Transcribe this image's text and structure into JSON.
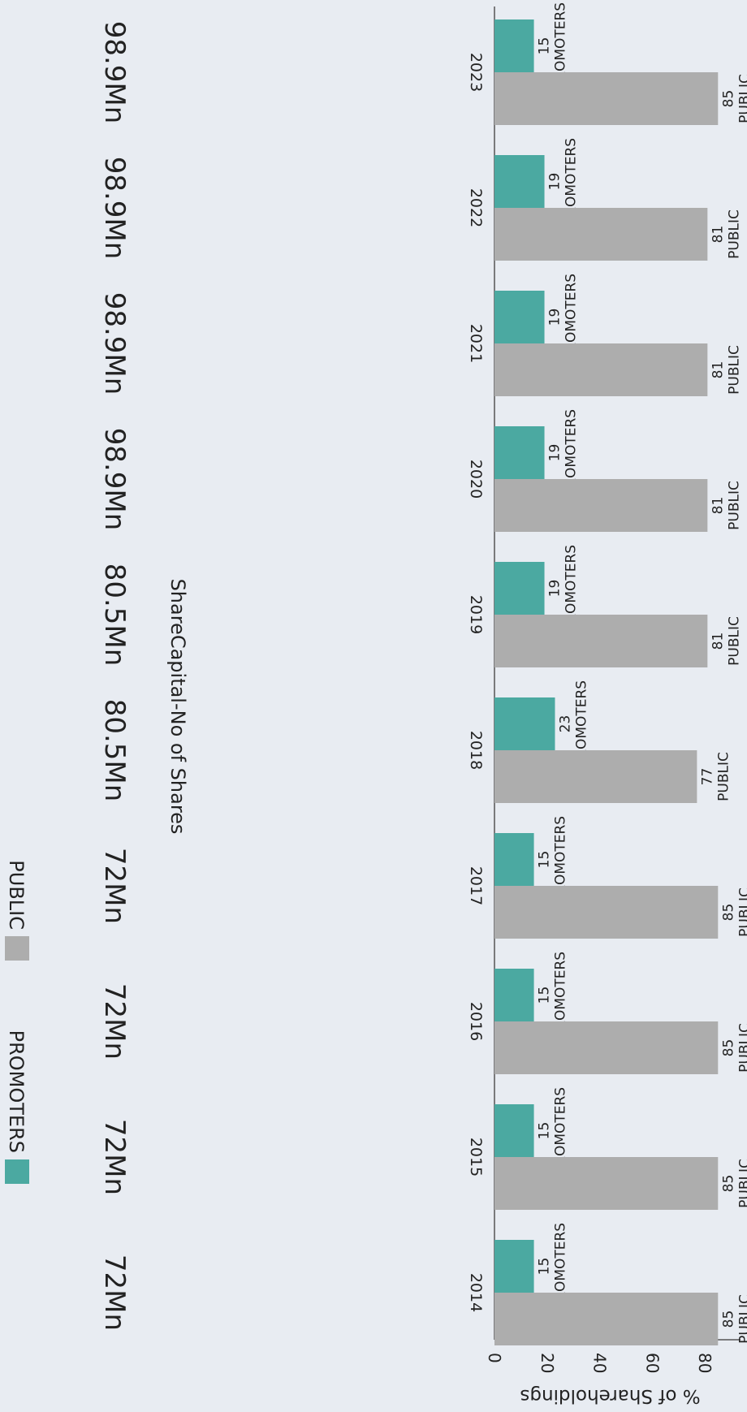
{
  "chart_data": {
    "type": "bar",
    "categories": [
      "2014",
      "2015",
      "2016",
      "2017",
      "2018",
      "2019",
      "2020",
      "2021",
      "2022",
      "2023"
    ],
    "series": [
      {
        "name": "PROMOTERS",
        "values": [
          15,
          15,
          15,
          15,
          23,
          19,
          19,
          19,
          19,
          15
        ],
        "color": "#4ba9a1"
      },
      {
        "name": "PUBLIC",
        "values": [
          85,
          85,
          85,
          85,
          77,
          81,
          81,
          81,
          81,
          85
        ],
        "color": "#adadad"
      }
    ],
    "ylabel": "% of Shareholdings",
    "ylim": [
      0,
      88
    ],
    "yticks": [
      0,
      20,
      40,
      60,
      80
    ],
    "grid": false,
    "legend_position": "bottom",
    "share_capital_title": "ShareCapital-No of Shares",
    "share_capital": [
      "72Mn",
      "72Mn",
      "72Mn",
      "72Mn",
      "80.5Mn",
      "80.5Mn",
      "98.9Mn",
      "98.9Mn",
      "98.9Mn",
      "98.9Mn"
    ],
    "orientation": "rotated-90-clockwise"
  }
}
